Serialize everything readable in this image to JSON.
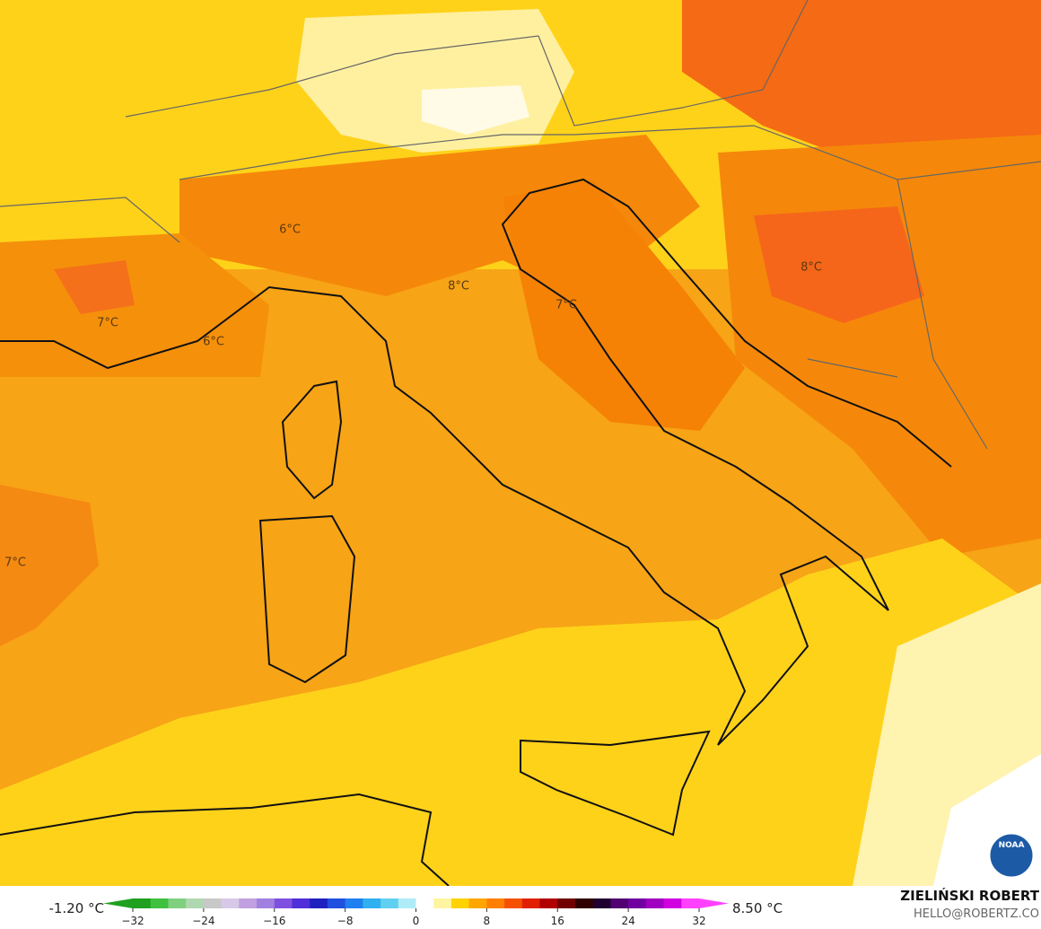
{
  "map": {
    "labels": [
      "6°C",
      "8°C",
      "7°C",
      "8°C",
      "7°C",
      "6°C",
      "7°C"
    ],
    "logo": "NOAA",
    "credit": {
      "name": "ZIELIŃSKI ROBERT",
      "contact": "HELLO@ROBERTZ.CO"
    },
    "colorbar": {
      "min_label": "-1.20 °C",
      "max_label": "8.50 °C",
      "range": [
        -32,
        32
      ],
      "ticks": [
        {
          "value": -32,
          "label": "−32"
        },
        {
          "value": -24,
          "label": "−24"
        },
        {
          "value": -16,
          "label": "−16"
        },
        {
          "value": -8,
          "label": "−8"
        },
        0,
        8,
        16,
        24,
        32
      ],
      "colors": [
        "#1fa01f",
        "#40c040",
        "#80d080",
        "#b0d8b0",
        "#c8c8c8",
        "#d8c8e8",
        "#c0a0e0",
        "#a080e0",
        "#7f50e0",
        "#5030d8",
        "#2020c0",
        "#2050e0",
        "#2080f0",
        "#30b0f0",
        "#60d0f0",
        "#b0ecf8",
        "#ffffff",
        "#fff5a0",
        "#ffd200",
        "#ffa500",
        "#ff7f00",
        "#f55000",
        "#e02000",
        "#b00000",
        "#700000",
        "#300000",
        "#200030",
        "#500070",
        "#7000a0",
        "#a000c0",
        "#d000e0",
        "#ff40ff"
      ]
    }
  }
}
